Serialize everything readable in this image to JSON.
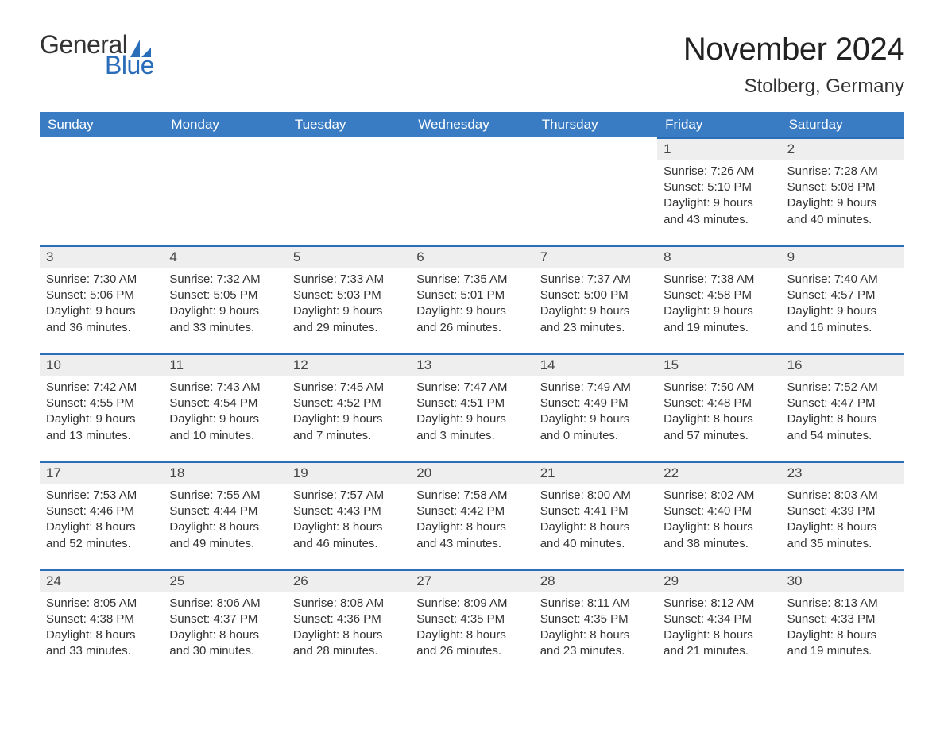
{
  "logo": {
    "general": "General",
    "blue": "Blue",
    "sail_color": "#2a6db8"
  },
  "title": "November 2024",
  "location": "Stolberg, Germany",
  "colors": {
    "header_bg": "#3a7cc4",
    "header_text": "#ffffff",
    "daynum_bg": "#eeeeee",
    "daynum_border": "#2a6db8",
    "body_text": "#333333",
    "background": "#ffffff"
  },
  "typography": {
    "title_fontsize": 40,
    "location_fontsize": 24,
    "dayname_fontsize": 17,
    "cell_fontsize": 15
  },
  "layout": {
    "columns": 7,
    "rows": 5,
    "leading_blanks": 5
  },
  "daynames": [
    "Sunday",
    "Monday",
    "Tuesday",
    "Wednesday",
    "Thursday",
    "Friday",
    "Saturday"
  ],
  "labels": {
    "sunrise": "Sunrise",
    "sunset": "Sunset",
    "daylight": "Daylight"
  },
  "days": [
    {
      "n": 1,
      "sunrise": "7:26 AM",
      "sunset": "5:10 PM",
      "daylight": "9 hours and 43 minutes."
    },
    {
      "n": 2,
      "sunrise": "7:28 AM",
      "sunset": "5:08 PM",
      "daylight": "9 hours and 40 minutes."
    },
    {
      "n": 3,
      "sunrise": "7:30 AM",
      "sunset": "5:06 PM",
      "daylight": "9 hours and 36 minutes."
    },
    {
      "n": 4,
      "sunrise": "7:32 AM",
      "sunset": "5:05 PM",
      "daylight": "9 hours and 33 minutes."
    },
    {
      "n": 5,
      "sunrise": "7:33 AM",
      "sunset": "5:03 PM",
      "daylight": "9 hours and 29 minutes."
    },
    {
      "n": 6,
      "sunrise": "7:35 AM",
      "sunset": "5:01 PM",
      "daylight": "9 hours and 26 minutes."
    },
    {
      "n": 7,
      "sunrise": "7:37 AM",
      "sunset": "5:00 PM",
      "daylight": "9 hours and 23 minutes."
    },
    {
      "n": 8,
      "sunrise": "7:38 AM",
      "sunset": "4:58 PM",
      "daylight": "9 hours and 19 minutes."
    },
    {
      "n": 9,
      "sunrise": "7:40 AM",
      "sunset": "4:57 PM",
      "daylight": "9 hours and 16 minutes."
    },
    {
      "n": 10,
      "sunrise": "7:42 AM",
      "sunset": "4:55 PM",
      "daylight": "9 hours and 13 minutes."
    },
    {
      "n": 11,
      "sunrise": "7:43 AM",
      "sunset": "4:54 PM",
      "daylight": "9 hours and 10 minutes."
    },
    {
      "n": 12,
      "sunrise": "7:45 AM",
      "sunset": "4:52 PM",
      "daylight": "9 hours and 7 minutes."
    },
    {
      "n": 13,
      "sunrise": "7:47 AM",
      "sunset": "4:51 PM",
      "daylight": "9 hours and 3 minutes."
    },
    {
      "n": 14,
      "sunrise": "7:49 AM",
      "sunset": "4:49 PM",
      "daylight": "9 hours and 0 minutes."
    },
    {
      "n": 15,
      "sunrise": "7:50 AM",
      "sunset": "4:48 PM",
      "daylight": "8 hours and 57 minutes."
    },
    {
      "n": 16,
      "sunrise": "7:52 AM",
      "sunset": "4:47 PM",
      "daylight": "8 hours and 54 minutes."
    },
    {
      "n": 17,
      "sunrise": "7:53 AM",
      "sunset": "4:46 PM",
      "daylight": "8 hours and 52 minutes."
    },
    {
      "n": 18,
      "sunrise": "7:55 AM",
      "sunset": "4:44 PM",
      "daylight": "8 hours and 49 minutes."
    },
    {
      "n": 19,
      "sunrise": "7:57 AM",
      "sunset": "4:43 PM",
      "daylight": "8 hours and 46 minutes."
    },
    {
      "n": 20,
      "sunrise": "7:58 AM",
      "sunset": "4:42 PM",
      "daylight": "8 hours and 43 minutes."
    },
    {
      "n": 21,
      "sunrise": "8:00 AM",
      "sunset": "4:41 PM",
      "daylight": "8 hours and 40 minutes."
    },
    {
      "n": 22,
      "sunrise": "8:02 AM",
      "sunset": "4:40 PM",
      "daylight": "8 hours and 38 minutes."
    },
    {
      "n": 23,
      "sunrise": "8:03 AM",
      "sunset": "4:39 PM",
      "daylight": "8 hours and 35 minutes."
    },
    {
      "n": 24,
      "sunrise": "8:05 AM",
      "sunset": "4:38 PM",
      "daylight": "8 hours and 33 minutes."
    },
    {
      "n": 25,
      "sunrise": "8:06 AM",
      "sunset": "4:37 PM",
      "daylight": "8 hours and 30 minutes."
    },
    {
      "n": 26,
      "sunrise": "8:08 AM",
      "sunset": "4:36 PM",
      "daylight": "8 hours and 28 minutes."
    },
    {
      "n": 27,
      "sunrise": "8:09 AM",
      "sunset": "4:35 PM",
      "daylight": "8 hours and 26 minutes."
    },
    {
      "n": 28,
      "sunrise": "8:11 AM",
      "sunset": "4:35 PM",
      "daylight": "8 hours and 23 minutes."
    },
    {
      "n": 29,
      "sunrise": "8:12 AM",
      "sunset": "4:34 PM",
      "daylight": "8 hours and 21 minutes."
    },
    {
      "n": 30,
      "sunrise": "8:13 AM",
      "sunset": "4:33 PM",
      "daylight": "8 hours and 19 minutes."
    }
  ]
}
